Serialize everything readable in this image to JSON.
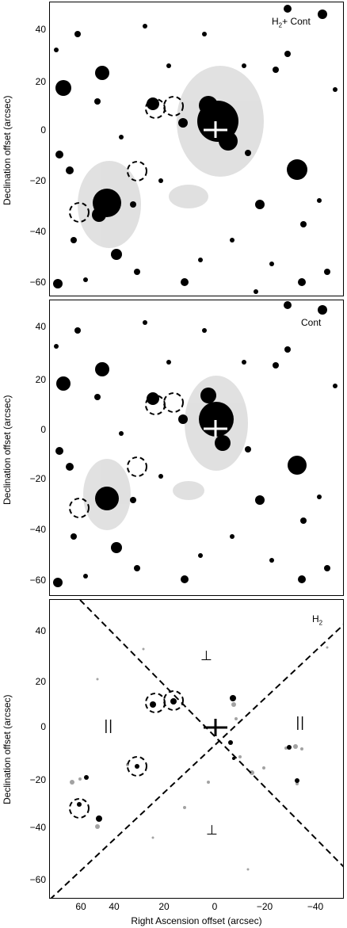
{
  "panels": [
    {
      "label_main": "H",
      "label_sub": "2",
      "label_tail": "+ Cont",
      "ylabel": "Declination offset (arcsec)",
      "yticks": [
        "40",
        "20",
        "0",
        "−20",
        "−40",
        "−60"
      ]
    },
    {
      "label_main": "Cont",
      "label_sub": "",
      "label_tail": "",
      "ylabel": "Declination offset (arcsec)",
      "yticks": [
        "40",
        "20",
        "0",
        "−20",
        "−40",
        "−60"
      ]
    },
    {
      "label_main": "H",
      "label_sub": "2",
      "label_tail": "",
      "ylabel": "Declination offset (arcsec)",
      "yticks": [
        "40",
        "20",
        "0",
        "−20",
        "−40",
        "−60"
      ],
      "region_labels": {
        "top": "⊥",
        "bottom": "⊥",
        "left": "||",
        "right": "||"
      }
    }
  ],
  "x_axis": {
    "label": "Right Ascension offset (arcsec)",
    "ticks": [
      "60",
      "40",
      "20",
      "0",
      "−20",
      "−40"
    ]
  },
  "colors": {
    "background": "#ffffff",
    "stars": "#000000",
    "diffuse": "#888888"
  }
}
